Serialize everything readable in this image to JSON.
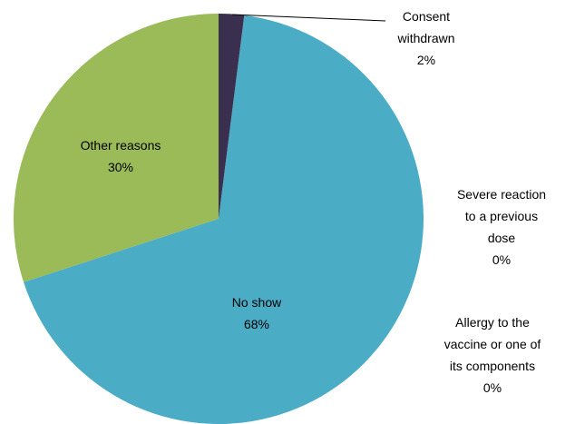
{
  "chart_data": {
    "type": "pie",
    "categories": [
      "Consent withdrawn",
      "Severe reaction to a previous dose",
      "Allergy to the vaccine or one of its components",
      "No show",
      "Other reasons"
    ],
    "values": [
      2,
      0,
      0,
      68,
      30
    ],
    "value_labels": [
      "2%",
      "0%",
      "0%",
      "68%",
      "30%"
    ],
    "colors": [
      "#3b2f4f",
      "#7f6084",
      "#f79646",
      "#4bacc6",
      "#9bbb59"
    ]
  }
}
